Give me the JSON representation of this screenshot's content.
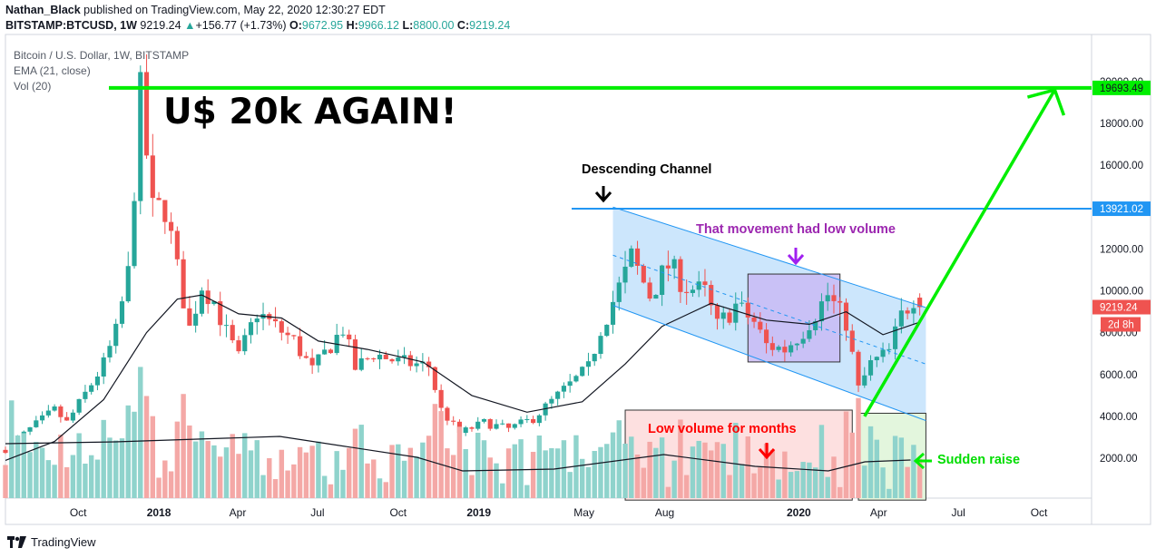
{
  "header": {
    "author": "Nathan_Black",
    "published_text": "published on TradingView.com, May 22, 2020 12:30:27 EDT",
    "symbol": "BITSTAMP:BTCUSD, 1W",
    "last": "9219.24",
    "change": "+156.77 (+1.73%)",
    "o_label": "O:",
    "o": "9672.95",
    "h_label": "H:",
    "h": "9966.12",
    "l_label": "L:",
    "l": "8800.00",
    "c_label": "C:",
    "c": "9219.24"
  },
  "legend": {
    "title": "Bitcoin / U.S. Dollar, 1W, BITSTAMP",
    "ema": "EMA (21, close)",
    "vol": "Vol (20)"
  },
  "footer": {
    "brand": "TradingView"
  },
  "colors": {
    "up": "#26a69a",
    "down": "#ef5350",
    "up_vol": "#8fd3cc",
    "down_vol": "#f4a8a6",
    "green_line": "#00ee00",
    "blue_line": "#2196f3",
    "channel_fill": "#bbdefb"
  },
  "chart_data": {
    "type": "candlestick",
    "interval": "1W",
    "y_axis": {
      "min": 0,
      "max": 21000,
      "ticks": [
        2000,
        4000,
        6000,
        8000,
        10000,
        12000,
        14000,
        16000,
        18000,
        20000
      ]
    },
    "y_tick_labels": [
      "2000.00",
      "4000.00",
      "6000.00",
      "8000.00",
      "10000.00",
      "12000.00",
      "",
      "16000.00",
      "18000.00",
      "20000.00"
    ],
    "x_tick_labels": [
      "Oct",
      "2018",
      "Apr",
      "Jul",
      "Oct",
      "2019",
      "May",
      "Aug",
      "2020",
      "Apr",
      "Jul",
      "Oct"
    ],
    "x_tick_dates": [
      "2017-10-01",
      "2018-01-01",
      "2018-04-01",
      "2018-07-01",
      "2018-10-01",
      "2019-01-01",
      "2019-05-01",
      "2019-08-01",
      "2020-01-01",
      "2020-04-01",
      "2020-07-01",
      "2020-10-01"
    ],
    "close_path": [
      [
        "2017-07-10",
        2400
      ],
      [
        "2017-08-07",
        3400
      ],
      [
        "2017-09-04",
        4300
      ],
      [
        "2017-09-18",
        3700
      ],
      [
        "2017-10-02",
        4600
      ],
      [
        "2017-10-30",
        6500
      ],
      [
        "2017-11-13",
        8000
      ],
      [
        "2017-11-27",
        10800
      ],
      [
        "2017-12-11",
        19300
      ],
      [
        "2017-12-25",
        13800
      ],
      [
        "2018-01-08",
        14000
      ],
      [
        "2018-01-22",
        11000
      ],
      [
        "2018-02-05",
        8200
      ],
      [
        "2018-02-19",
        10300
      ],
      [
        "2018-03-05",
        9500
      ],
      [
        "2018-03-19",
        8000
      ],
      [
        "2018-04-02",
        6800
      ],
      [
        "2018-04-23",
        9000
      ],
      [
        "2018-05-07",
        8500
      ],
      [
        "2018-06-04",
        7600
      ],
      [
        "2018-06-25",
        6200
      ],
      [
        "2018-07-16",
        7400
      ],
      [
        "2018-07-30",
        8200
      ],
      [
        "2018-08-13",
        6300
      ],
      [
        "2018-09-03",
        7000
      ],
      [
        "2018-10-01",
        6600
      ],
      [
        "2018-11-05",
        6400
      ],
      [
        "2018-11-19",
        4300
      ],
      [
        "2018-12-10",
        3200
      ],
      [
        "2019-01-07",
        3700
      ],
      [
        "2019-02-04",
        3400
      ],
      [
        "2019-03-04",
        3900
      ],
      [
        "2019-04-01",
        5000
      ],
      [
        "2019-05-06",
        6300
      ],
      [
        "2019-05-20",
        8200
      ],
      [
        "2019-06-17",
        10800
      ],
      [
        "2019-06-24",
        11600
      ],
      [
        "2019-07-15",
        9800
      ],
      [
        "2019-08-05",
        11200
      ],
      [
        "2019-08-26",
        10200
      ],
      [
        "2019-09-16",
        9900
      ],
      [
        "2019-09-30",
        8300
      ],
      [
        "2019-10-21",
        9300
      ],
      [
        "2019-11-11",
        8500
      ],
      [
        "2019-11-25",
        7400
      ],
      [
        "2019-12-16",
        7200
      ],
      [
        "2020-01-06",
        8100
      ],
      [
        "2020-02-03",
        9800
      ],
      [
        "2020-02-24",
        8500
      ],
      [
        "2020-03-09",
        5300
      ],
      [
        "2020-03-23",
        6500
      ],
      [
        "2020-04-13",
        7100
      ],
      [
        "2020-04-27",
        8800
      ],
      [
        "2020-05-11",
        9700
      ],
      [
        "2020-05-18",
        9219
      ]
    ],
    "ema_21_path": [
      [
        "2017-07-10",
        1900
      ],
      [
        "2017-09-04",
        2800
      ],
      [
        "2017-10-30",
        4800
      ],
      [
        "2017-12-18",
        8000
      ],
      [
        "2018-01-22",
        9600
      ],
      [
        "2018-02-19",
        9800
      ],
      [
        "2018-04-02",
        8900
      ],
      [
        "2018-05-21",
        8700
      ],
      [
        "2018-07-02",
        7600
      ],
      [
        "2018-08-27",
        7200
      ],
      [
        "2018-10-29",
        6600
      ],
      [
        "2018-12-24",
        5000
      ],
      [
        "2019-02-25",
        4200
      ],
      [
        "2019-04-29",
        4700
      ],
      [
        "2019-06-17",
        6500
      ],
      [
        "2019-07-29",
        8300
      ],
      [
        "2019-09-23",
        9400
      ],
      [
        "2019-11-25",
        8600
      ],
      [
        "2020-01-13",
        8400
      ],
      [
        "2020-02-24",
        9000
      ],
      [
        "2020-04-06",
        7900
      ],
      [
        "2020-05-18",
        8500
      ]
    ],
    "annotations": {
      "headline": "U$ 20k AGAIN!",
      "channel": "Descending Channel",
      "low_volume_move": "That movement had low volume",
      "low_volume_months": "Low volume for months",
      "sudden_raise": "Sudden raise"
    },
    "price_levels": [
      {
        "label": "19693.49",
        "value": 19693.49,
        "color": "#00ee00"
      },
      {
        "label": "13921.02",
        "value": 13921.02,
        "color": "#2196f3"
      }
    ],
    "last_price": {
      "label": "9219.24",
      "countdown": "2d 8h",
      "value": 9219.24
    },
    "projection": {
      "from_date": "2020-03-16",
      "from_value": 4000,
      "to_date": "2020-10-19",
      "to_value": 19600
    }
  }
}
